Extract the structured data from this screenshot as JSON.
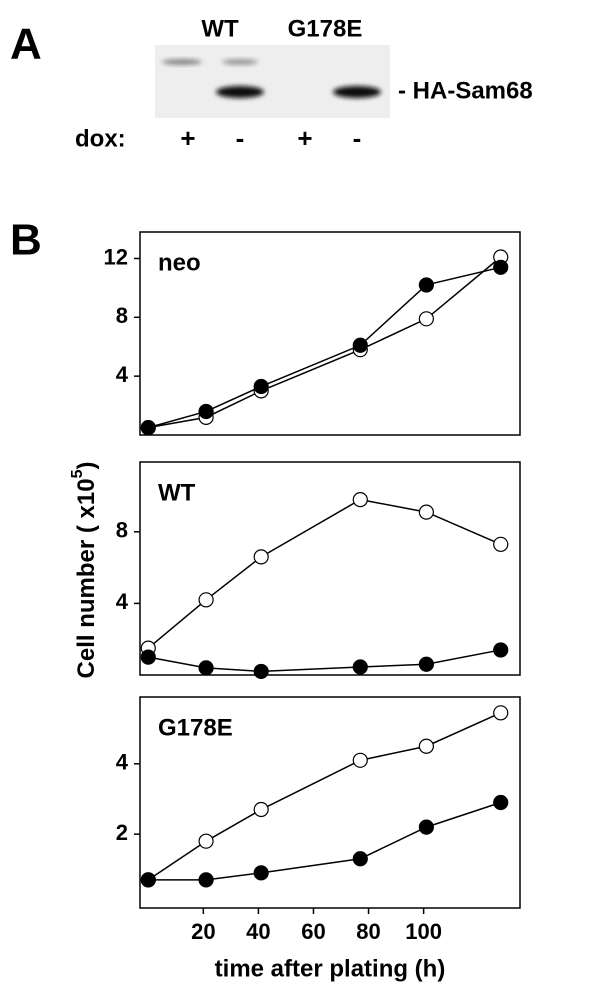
{
  "panel_a": {
    "letter": "A",
    "lanes_top": [
      "WT",
      "G178E"
    ],
    "band_label": "- HA-Sam68",
    "dox_label": "dox:",
    "dox": [
      "+",
      "-",
      "+",
      "-"
    ]
  },
  "panel_b": {
    "letter": "B",
    "x_label": "time after plating (h)",
    "y_label": "Cell number  ( x10",
    "y_label_exponent": "5",
    "y_label_close": ")"
  },
  "chart_data": [
    {
      "type": "line",
      "label": "neo",
      "x": [
        0,
        21,
        41,
        77,
        101,
        128
      ],
      "xlim": [
        -3,
        135
      ],
      "ylim": [
        0,
        13.8
      ],
      "yticks": [
        4,
        8,
        12
      ],
      "series": [
        {
          "color": "#000000",
          "marker_fill": "#ffffff",
          "values": [
            0.5,
            1.2,
            3.0,
            5.8,
            7.9,
            12.1
          ]
        },
        {
          "color": "#000000",
          "marker_fill": "#000000",
          "values": [
            0.5,
            1.6,
            3.3,
            6.1,
            10.2,
            11.4
          ]
        }
      ]
    },
    {
      "type": "line",
      "label": "WT",
      "x": [
        0,
        21,
        41,
        77,
        101,
        128
      ],
      "xlim": [
        -3,
        135
      ],
      "ylim": [
        0,
        11.9
      ],
      "yticks": [
        4,
        8
      ],
      "series": [
        {
          "color": "#000000",
          "marker_fill": "#ffffff",
          "values": [
            1.5,
            4.2,
            6.6,
            9.8,
            9.1,
            7.3
          ]
        },
        {
          "color": "#000000",
          "marker_fill": "#000000",
          "values": [
            1.0,
            0.4,
            0.2,
            0.45,
            0.6,
            1.4
          ]
        }
      ]
    },
    {
      "type": "line",
      "label": "G178E",
      "x": [
        0,
        21,
        41,
        77,
        101,
        128
      ],
      "xlim": [
        -3,
        135
      ],
      "ylim": [
        -0.1,
        5.9
      ],
      "yticks": [
        2,
        4
      ],
      "xticks": [
        20,
        40,
        60,
        80,
        100
      ],
      "series": [
        {
          "color": "#000000",
          "marker_fill": "#ffffff",
          "values": [
            0.7,
            1.8,
            2.7,
            4.1,
            4.5,
            5.45
          ]
        },
        {
          "color": "#000000",
          "marker_fill": "#000000",
          "values": [
            0.7,
            0.7,
            0.9,
            1.3,
            2.2,
            2.9
          ]
        }
      ]
    }
  ]
}
